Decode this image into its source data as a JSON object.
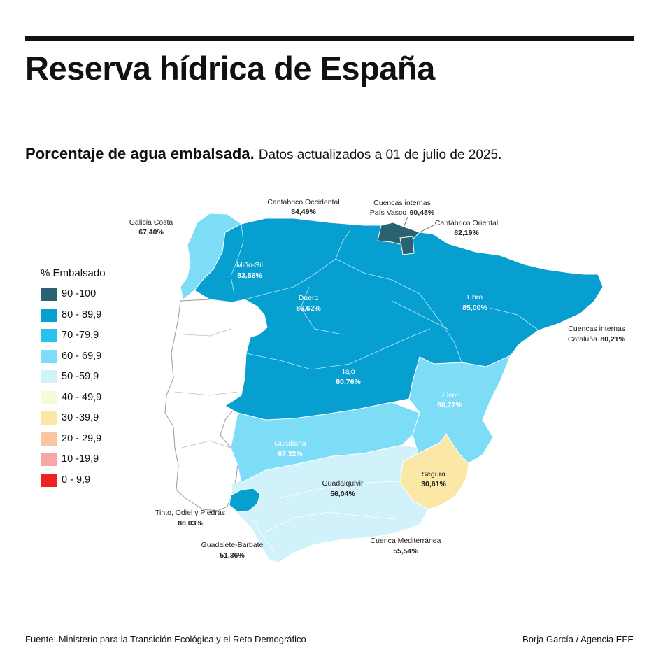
{
  "title": "Reserva hídrica de España",
  "subtitle": {
    "bold": "Porcentaje de agua embalsada.",
    "normal": "Datos actualizados a 01 de julio de 2025."
  },
  "legend": {
    "title": "% Embalsado",
    "items": [
      {
        "label": "90 -100",
        "color": "#2b6272"
      },
      {
        "label": "80 - 89,9",
        "color": "#079fcf"
      },
      {
        "label": "70 -79,9",
        "color": "#27c3ee"
      },
      {
        "label": "60 - 69,9",
        "color": "#7ddcf6"
      },
      {
        "label": "50 -59,9",
        "color": "#d2f2fb"
      },
      {
        "label": "40 - 49,9",
        "color": "#f4fbd8"
      },
      {
        "label": "30 -39,9",
        "color": "#fbe8a6"
      },
      {
        "label": "20 - 29,9",
        "color": "#f9c6a1"
      },
      {
        "label": "10 -19,9",
        "color": "#f9a6a6"
      },
      {
        "label": "0 - 9,9",
        "color": "#ee2222"
      }
    ]
  },
  "basins": {
    "galicia_costa": {
      "name": "Galicia Costa",
      "value": "67,40%"
    },
    "cantabrico_occidental": {
      "name": "Cantábrico Occidental",
      "value": "84,49%"
    },
    "pais_vasco": {
      "name_line1": "Cuencas internas",
      "name_line2": "País Vasco",
      "value": "90,48%"
    },
    "cantabrico_oriental": {
      "name": "Cantábrico Oriental",
      "value": "82,19%"
    },
    "mino_sil": {
      "name": "Miño-Sil",
      "value": "83,56%"
    },
    "duero": {
      "name": "Duero",
      "value": "86,62%"
    },
    "ebro": {
      "name": "Ebro",
      "value": "85,00%"
    },
    "cataluna": {
      "name_line1": "Cuencas internas",
      "name_line2": "Cataluña",
      "value": "80,21%"
    },
    "tajo": {
      "name": "Tajo",
      "value": "80,76%"
    },
    "jucar": {
      "name": "Júcar",
      "value": "60,72%"
    },
    "guadiana": {
      "name": "Guadiana",
      "value": "67,32%"
    },
    "guadalquivir": {
      "name": "Guadalquivir",
      "value": "56,04%"
    },
    "segura": {
      "name": "Segura",
      "value": "30,61%"
    },
    "tinto_odiel": {
      "name": "Tinto, Odiel y Piedras",
      "value": "86,03%"
    },
    "guadalete_barbate": {
      "name": "Guadalete-Barbate",
      "value": "51,36%"
    },
    "cuenca_mediterranea": {
      "name": "Cuenca Mediterránea",
      "value": "55,54%"
    }
  },
  "colors": {
    "pct_90_100": "#2b6272",
    "pct_80_89": "#079fcf",
    "pct_60_69": "#7ddcf6",
    "pct_50_59": "#d2f2fb",
    "pct_30_39": "#fbe8a6",
    "portugal_outline": "#9a9a9a"
  },
  "footer": {
    "source": "Fuente: Ministerio para la Transición Ecológica y el Reto Demográfico",
    "credit": "Borja García / Agencia EFE"
  }
}
